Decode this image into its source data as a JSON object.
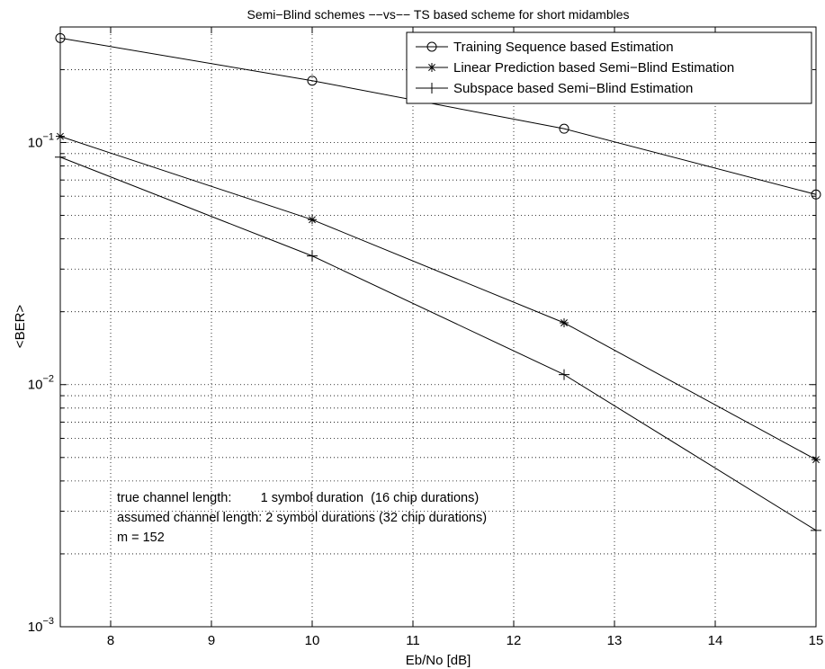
{
  "chart_data": {
    "type": "line",
    "title": "Semi−Blind schemes  −−vs−−  TS based scheme for short midambles",
    "xlabel": "Eb/No [dB]",
    "ylabel": "<BER>",
    "xlim": [
      7.5,
      15
    ],
    "ylim": [
      0.001,
      0.3
    ],
    "yscale": "log",
    "grid": true,
    "legend_position": "top-right",
    "x_ticks": [
      8,
      9,
      10,
      11,
      12,
      13,
      14,
      15
    ],
    "x_tick_labels": [
      "8",
      "9",
      "10",
      "11",
      "12",
      "13",
      "14",
      "15"
    ],
    "y_ticks": [
      0.001,
      0.01,
      0.1
    ],
    "y_tick_labels": [
      {
        "base": "10",
        "exp": "−3"
      },
      {
        "base": "10",
        "exp": "−2"
      },
      {
        "base": "10",
        "exp": "−1"
      }
    ],
    "series": [
      {
        "name": "Training Sequence based Estimation",
        "marker": "circle",
        "x": [
          7.5,
          10,
          12.5,
          15
        ],
        "y": [
          0.27,
          0.18,
          0.114,
          0.061
        ]
      },
      {
        "name": "Linear Prediction based Semi−Blind Estimation",
        "marker": "star",
        "x": [
          7.5,
          10,
          12.5,
          15
        ],
        "y": [
          0.106,
          0.048,
          0.018,
          0.0049
        ]
      },
      {
        "name": "Subspace based Semi−Blind Estimation",
        "marker": "plus",
        "x": [
          7.5,
          10,
          12.5,
          15
        ],
        "y": [
          0.087,
          0.034,
          0.011,
          0.0025
        ]
      }
    ],
    "annotations": [
      "true channel length:        1 symbol duration  (16 chip durations)",
      "assumed channel length: 2 symbol durations (32 chip durations)",
      "m = 152"
    ]
  }
}
